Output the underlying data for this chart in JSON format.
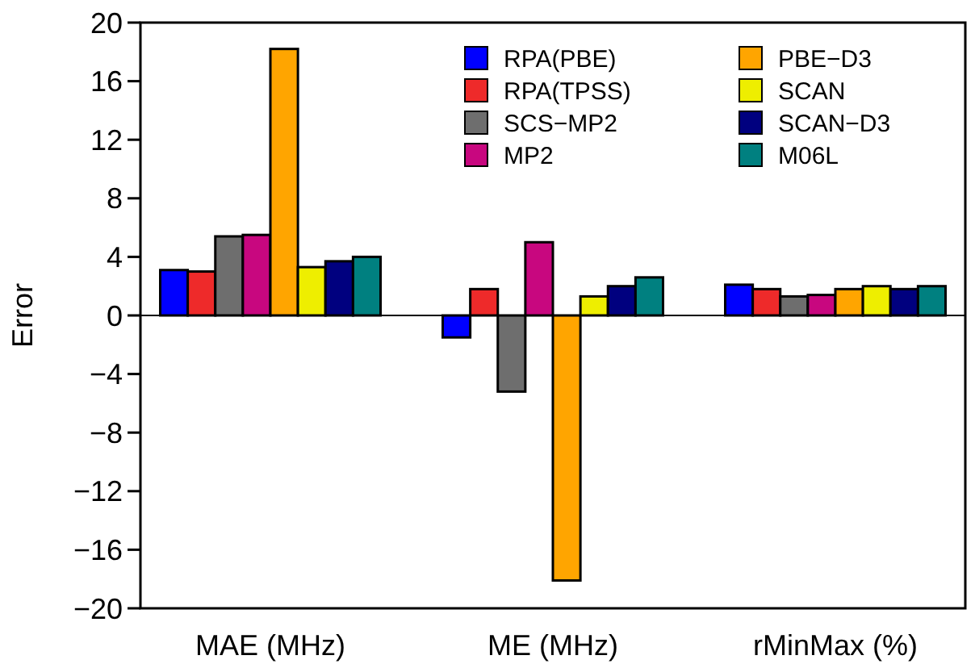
{
  "chart_data": {
    "type": "bar",
    "ylabel": "Error",
    "categories": [
      "MAE (MHz)",
      "ME (MHz)",
      "rMinMax (%)"
    ],
    "series": [
      {
        "name": "RPA(PBE)",
        "color": "#0000ff",
        "values": [
          3.1,
          -1.5,
          2.1
        ]
      },
      {
        "name": "RPA(TPSS)",
        "color": "#ee2a2a",
        "values": [
          3.0,
          1.8,
          1.8
        ]
      },
      {
        "name": "SCS−MP2",
        "color": "#6e6e6e",
        "values": [
          5.4,
          -5.2,
          1.3
        ]
      },
      {
        "name": "MP2",
        "color": "#c8077f",
        "values": [
          5.5,
          5.0,
          1.4
        ]
      },
      {
        "name": "PBE−D3",
        "color": "#ffa500",
        "values": [
          18.2,
          -18.1,
          1.8
        ]
      },
      {
        "name": "SCAN",
        "color": "#eeee00",
        "values": [
          3.3,
          1.3,
          2.0
        ]
      },
      {
        "name": "SCAN−D3",
        "color": "#00007f",
        "values": [
          3.7,
          2.0,
          1.8
        ]
      },
      {
        "name": "M06L",
        "color": "#008080",
        "values": [
          4.0,
          2.6,
          2.0
        ]
      }
    ],
    "ylim": [
      -20,
      20
    ],
    "yticks": [
      20,
      16,
      12,
      8,
      4,
      0,
      -4,
      -8,
      -12,
      -16,
      -20
    ],
    "ref_lines": [
      {
        "axis": "y",
        "value": 0,
        "color": "#000000"
      }
    ],
    "legend": "top right"
  }
}
